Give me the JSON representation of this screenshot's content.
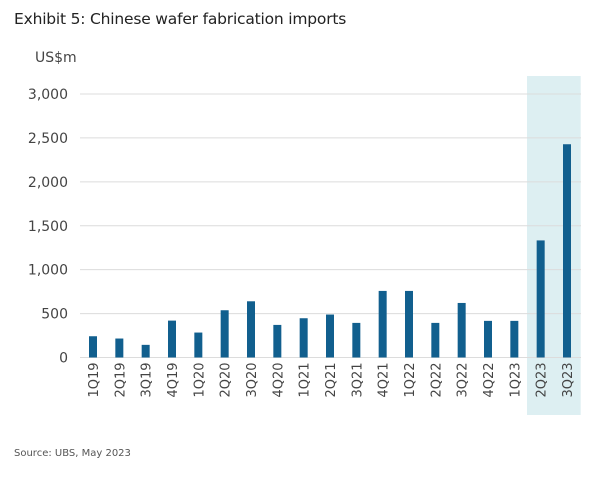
{
  "chart_data": {
    "type": "bar",
    "title": "Exhibit 5: Chinese wafer fabrication imports",
    "ylabel": "US$m",
    "xlabel": "",
    "ylim": [
      0,
      3000
    ],
    "yticks": [
      0,
      500,
      1000,
      1500,
      2000,
      2500,
      3000
    ],
    "ytick_labels": [
      "0",
      "500",
      "1,000",
      "1,500",
      "2,000",
      "2,500",
      "3,000"
    ],
    "grid": true,
    "categories": [
      "1Q19",
      "2Q19",
      "3Q19",
      "4Q19",
      "1Q20",
      "2Q20",
      "3Q20",
      "4Q20",
      "1Q21",
      "2Q21",
      "3Q21",
      "4Q21",
      "1Q22",
      "2Q22",
      "3Q22",
      "4Q22",
      "1Q23",
      "2Q23",
      "3Q23"
    ],
    "values": [
      242,
      216,
      144,
      420,
      284,
      538,
      640,
      371,
      447,
      489,
      394,
      758,
      758,
      394,
      621,
      417,
      417,
      1333,
      2428
    ],
    "highlighted_categories": [
      "2Q23",
      "3Q23"
    ],
    "bar_color": "#115f8e",
    "highlight_color": "#ddeff2",
    "source": "Source: UBS, May 2023"
  }
}
